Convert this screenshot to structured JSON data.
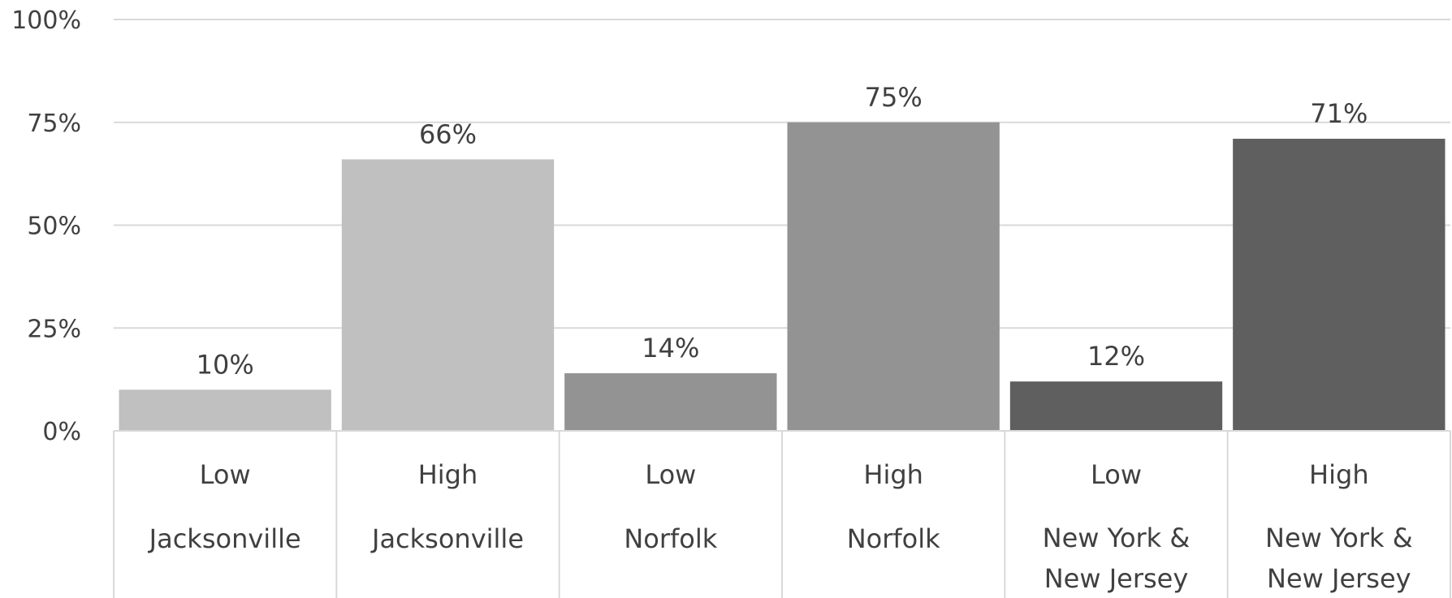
{
  "chart_data": {
    "type": "bar",
    "title": "",
    "xlabel": "",
    "ylabel": "",
    "ylim": [
      0,
      100
    ],
    "yticks": [
      0,
      25,
      50,
      75,
      100
    ],
    "ytick_labels": [
      "0%",
      "25%",
      "50%",
      "75%",
      "100%"
    ],
    "grid": true,
    "categories": [
      {
        "level": "Low",
        "group": [
          "Jacksonville"
        ]
      },
      {
        "level": "High",
        "group": [
          "Jacksonville"
        ]
      },
      {
        "level": "Low",
        "group": [
          "Norfolk"
        ]
      },
      {
        "level": "High",
        "group": [
          "Norfolk"
        ]
      },
      {
        "level": "Low",
        "group": [
          "New York &",
          "New Jersey"
        ]
      },
      {
        "level": "High",
        "group": [
          "New York &",
          "New Jersey"
        ]
      }
    ],
    "values": [
      10,
      66,
      14,
      75,
      12,
      71
    ],
    "value_labels": [
      "10%",
      "66%",
      "14%",
      "75%",
      "12%",
      "71%"
    ],
    "colors": [
      "#c0c0c0",
      "#c0c0c0",
      "#939393",
      "#939393",
      "#5f5f5f",
      "#5f5f5f"
    ]
  }
}
